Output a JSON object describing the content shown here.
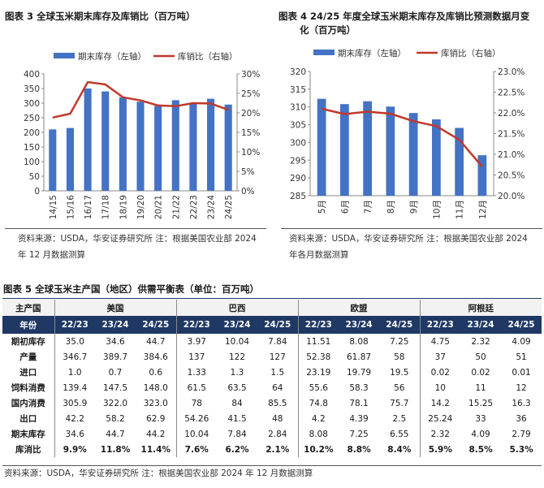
{
  "figure3": {
    "title": "图表 3 全球玉米期末库存及库销比（百万吨）",
    "source": [
      "资料来源：USDA，华安证券研究所  注：根据美国农业部 2024",
      "年 12 月数据测算"
    ]
  },
  "figure4": {
    "title": [
      "图表 4 24/25 年度全球玉米期末库存及库销比预测数据月变",
      "化（百万吨）"
    ],
    "source": [
      "资料来源：USDA，华安证券研究所  注：根据美国农业部 2024",
      "年各月数据测算"
    ]
  },
  "colors": {
    "bar": "#4472c4",
    "line": "#c0392b",
    "header": "#1f3864"
  },
  "chart_data": [
    {
      "type": "bar",
      "categories": [
        "14/15",
        "15/16",
        "16/17",
        "17/18",
        "18/19",
        "19/20",
        "20/21",
        "21/22",
        "22/23",
        "23/24",
        "24/25"
      ],
      "series": [
        {
          "name": "期末库存（左轴）",
          "axis": "left",
          "type": "bar",
          "values": [
            210,
            215,
            350,
            340,
            320,
            305,
            290,
            310,
            300,
            315,
            295
          ]
        },
        {
          "name": "库销比（右轴）",
          "axis": "right",
          "type": "line",
          "values": [
            18.8,
            19.8,
            27.9,
            27.3,
            24.0,
            23.2,
            21.9,
            21.7,
            22.5,
            22.4,
            20.8
          ]
        }
      ],
      "ylim_left": [
        0,
        400
      ],
      "yticks_left": [
        "0",
        "50",
        "100",
        "150",
        "200",
        "250",
        "300",
        "350",
        "400"
      ],
      "ylim_right": [
        0,
        30
      ],
      "yticks_right": [
        "0%",
        "5%",
        "10%",
        "15%",
        "20%",
        "25%",
        "30%"
      ]
    },
    {
      "type": "bar",
      "categories": [
        "5月",
        "6月",
        "7月",
        "8月",
        "9月",
        "10月",
        "11月",
        "12月"
      ],
      "series": [
        {
          "name": "期末库存（左轴）",
          "axis": "left",
          "type": "bar",
          "values": [
            312.3,
            310.8,
            311.6,
            310.1,
            308.3,
            306.5,
            304.1,
            296.4
          ]
        },
        {
          "name": "库销比（右轴）",
          "axis": "right",
          "type": "line",
          "values": [
            22.1,
            21.97,
            22.03,
            21.98,
            21.8,
            21.68,
            21.35,
            20.7
          ]
        }
      ],
      "ylim_left": [
        285,
        320
      ],
      "yticks_left": [
        "285",
        "290",
        "295",
        "300",
        "305",
        "310",
        "315",
        "320"
      ],
      "ylim_right": [
        20,
        23
      ],
      "yticks_right": [
        "20.0%",
        "20.5%",
        "21.0%",
        "21.5%",
        "22.0%",
        "22.5%",
        "23.0%"
      ]
    },
    {
      "type": "table",
      "title": "图表 5 全球玉米主产国（地区）供需平衡表（单位：百万吨）",
      "corner_label": "主产国",
      "year_label": "年份",
      "countries": [
        "美国",
        "巴西",
        "欧盟",
        "阿根廷"
      ],
      "years": [
        "22/23",
        "23/24",
        "24/25"
      ],
      "rows": [
        {
          "label": "期初库存",
          "values": [
            "35.0",
            "34.6",
            "44.7",
            "3.97",
            "10.04",
            "7.84",
            "11.51",
            "8.08",
            "7.25",
            "4.75",
            "2.32",
            "4.09"
          ]
        },
        {
          "label": "产量",
          "values": [
            "346.7",
            "389.7",
            "384.6",
            "137",
            "122",
            "127",
            "52.38",
            "61.87",
            "58",
            "37",
            "50",
            "51"
          ]
        },
        {
          "label": "进口",
          "values": [
            "1.0",
            "0.7",
            "0.6",
            "1.33",
            "1.3",
            "1.5",
            "23.19",
            "19.79",
            "19.5",
            "0.02",
            "0.02",
            "0.01"
          ]
        },
        {
          "label": "饲料消费",
          "values": [
            "139.4",
            "147.5",
            "148.0",
            "61.5",
            "63.5",
            "64",
            "55.6",
            "58.3",
            "56",
            "10",
            "11",
            "12"
          ]
        },
        {
          "label": "国内消费",
          "values": [
            "305.9",
            "322.0",
            "323.0",
            "78",
            "84",
            "85.5",
            "74.8",
            "78.1",
            "75.7",
            "14.2",
            "15.25",
            "16.3"
          ]
        },
        {
          "label": "出口",
          "values": [
            "42.2",
            "58.2",
            "62.9",
            "54.26",
            "41.5",
            "48",
            "4.2",
            "4.39",
            "2.5",
            "25.24",
            "33",
            "36"
          ]
        },
        {
          "label": "期末库存",
          "values": [
            "34.6",
            "44.7",
            "44.2",
            "10.04",
            "7.84",
            "2.84",
            "8.08",
            "7.25",
            "6.55",
            "2.32",
            "4.09",
            "2.79"
          ]
        },
        {
          "label": "库消比",
          "values": [
            "9.9%",
            "11.8%",
            "11.4%",
            "7.6%",
            "6.2%",
            "2.1%",
            "10.2%",
            "8.8%",
            "8.4%",
            "5.9%",
            "8.5%",
            "5.3%"
          ]
        }
      ],
      "source": "资料来源：USDA，华安证券研究所    注：根据美国农业部 2024 年 12 月数据测算"
    }
  ]
}
